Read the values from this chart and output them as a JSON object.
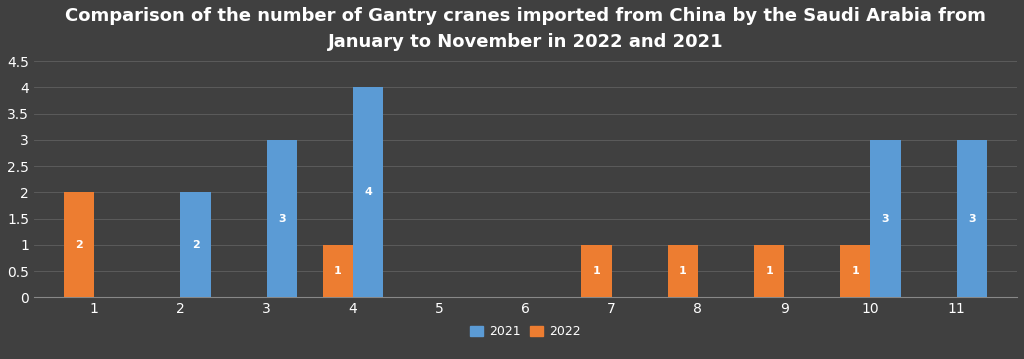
{
  "title": "Comparison of the number of Gantry cranes imported from China by the Saudi Arabia from\nJanuary to November in 2022 and 2021",
  "months": [
    1,
    2,
    3,
    4,
    5,
    6,
    7,
    8,
    9,
    10,
    11
  ],
  "values_2021": [
    0,
    2,
    3,
    4,
    0,
    0,
    0,
    0,
    0,
    3,
    3
  ],
  "values_2022": [
    2,
    0,
    0,
    1,
    0,
    0,
    1,
    1,
    1,
    1,
    0
  ],
  "color_2021": "#5B9BD5",
  "color_2022": "#ED7D31",
  "background_color": "#404040",
  "axes_background": "#404040",
  "text_color": "#ffffff",
  "grid_color": "#606060",
  "ylim": [
    0,
    4.5
  ],
  "yticks": [
    0,
    0.5,
    1,
    1.5,
    2,
    2.5,
    3,
    3.5,
    4,
    4.5
  ],
  "bar_width": 0.35,
  "title_fontsize": 13,
  "tick_fontsize": 10,
  "legend_fontsize": 9
}
